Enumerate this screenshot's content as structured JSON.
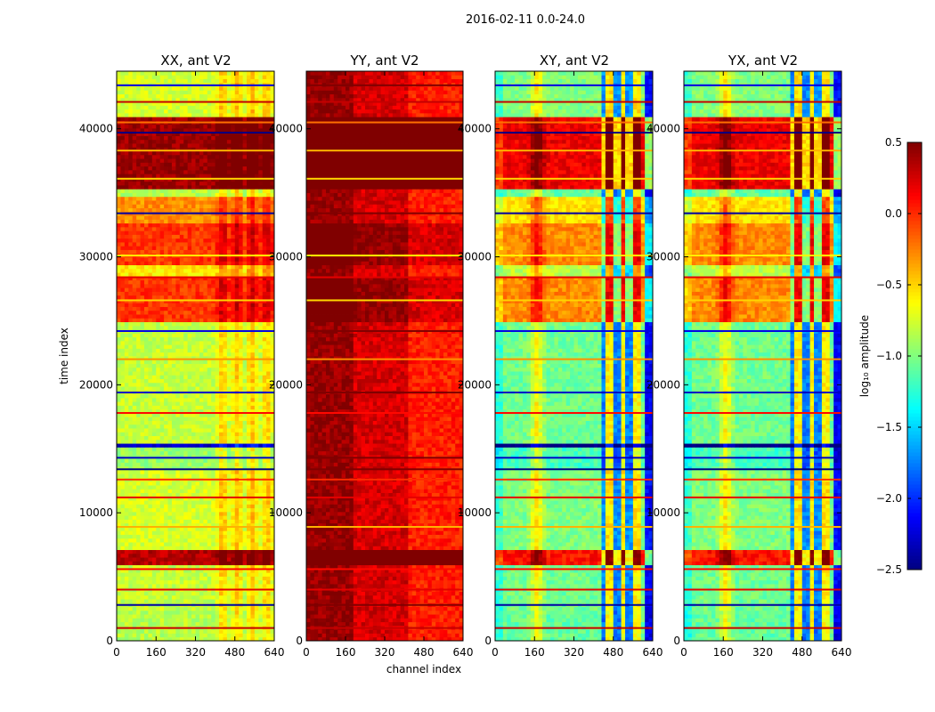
{
  "chart_data": {
    "type": "heatmap",
    "suptitle": "2016-02-11 0.0-24.0",
    "xlabel": "channel index",
    "ylabel": "time index",
    "xlim": [
      0,
      640
    ],
    "ylim": [
      0,
      44500
    ],
    "xticks": [
      0,
      160,
      320,
      480,
      640
    ],
    "yticks": [
      0,
      10000,
      20000,
      30000,
      40000
    ],
    "colormap": "jet",
    "colorbar": {
      "label": "log₁₀ amplitude",
      "vmin": -2.5,
      "vmax": 0.5,
      "ticks": [
        "−2.5",
        "−2.0",
        "−1.5",
        "−1.0",
        "−0.5",
        "0.0",
        "0.5"
      ],
      "tick_values": [
        -2.5,
        -2.0,
        -1.5,
        -1.0,
        -0.5,
        0.0,
        0.5
      ]
    },
    "panels": [
      {
        "id": "xx",
        "title": "XX, ant V2",
        "baseline": -0.75,
        "profile": "xx"
      },
      {
        "id": "yy",
        "title": "YY, ant V2",
        "baseline": 0.35,
        "profile": "yy"
      },
      {
        "id": "xy",
        "title": "XY, ant V2",
        "baseline": -1.0,
        "profile": "cross"
      },
      {
        "id": "yx",
        "title": "YX, ant V2",
        "baseline": -1.0,
        "profile": "cross"
      }
    ],
    "time_bands": [
      {
        "t0": 0,
        "t1": 2500,
        "level": -0.9
      },
      {
        "t0": 2500,
        "t1": 6000,
        "level": -0.85
      },
      {
        "t0": 6000,
        "t1": 7000,
        "level": 0.4
      },
      {
        "t0": 7000,
        "t1": 13300,
        "level": -0.8
      },
      {
        "t0": 13300,
        "t1": 15200,
        "level": -1.0
      },
      {
        "t0": 15200,
        "t1": 15400,
        "level": -2.5
      },
      {
        "t0": 15400,
        "t1": 25000,
        "level": -0.85
      },
      {
        "t0": 25000,
        "t1": 28500,
        "level": 0.0
      },
      {
        "t0": 28500,
        "t1": 29500,
        "level": -0.6
      },
      {
        "t0": 29500,
        "t1": 32500,
        "level": 0.0
      },
      {
        "t0": 32500,
        "t1": 34800,
        "level": -0.3
      },
      {
        "t0": 34800,
        "t1": 35200,
        "level": -0.9
      },
      {
        "t0": 35200,
        "t1": 41000,
        "level": 0.5
      },
      {
        "t0": 41000,
        "t1": 44500,
        "level": -0.8
      }
    ],
    "flag_lines": [
      {
        "t": 1000,
        "level": 0.3
      },
      {
        "t": 2800,
        "level": -2.4
      },
      {
        "t": 4000,
        "level": 0.2
      },
      {
        "t": 5600,
        "level": 0.1
      },
      {
        "t": 8900,
        "level": -0.4
      },
      {
        "t": 11200,
        "level": 0.2
      },
      {
        "t": 12600,
        "level": 0.0
      },
      {
        "t": 13400,
        "level": -2.5
      },
      {
        "t": 14300,
        "level": -2.3
      },
      {
        "t": 17800,
        "level": 0.1
      },
      {
        "t": 19400,
        "level": -2.3
      },
      {
        "t": 22000,
        "level": -0.3
      },
      {
        "t": 24200,
        "level": -2.2
      },
      {
        "t": 26600,
        "level": -0.5
      },
      {
        "t": 28400,
        "level": 0.2
      },
      {
        "t": 30100,
        "level": -0.6
      },
      {
        "t": 33400,
        "level": -2.4
      },
      {
        "t": 36100,
        "level": -0.5
      },
      {
        "t": 38300,
        "level": -0.4
      },
      {
        "t": 39700,
        "level": -2.5
      },
      {
        "t": 40500,
        "level": -0.2
      },
      {
        "t": 42100,
        "level": 0.3
      },
      {
        "t": 43400,
        "level": -2.2
      }
    ]
  }
}
